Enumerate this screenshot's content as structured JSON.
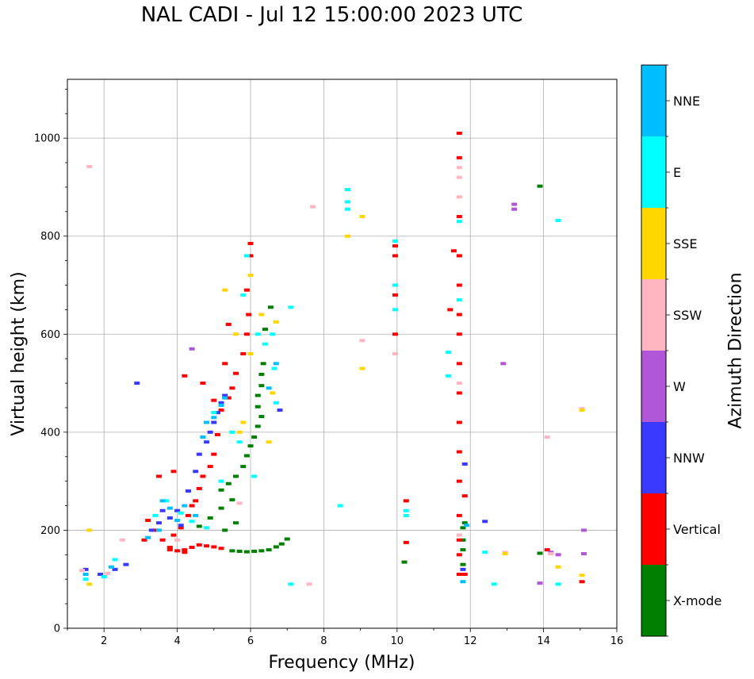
{
  "chart_data": {
    "type": "scatter",
    "title": "NAL CADI - Jul 12 15:00:00 2023 UTC",
    "xlabel": "Frequency (MHz)",
    "ylabel": "Virtual height (km)",
    "xlim": [
      1,
      16
    ],
    "ylim": [
      0,
      1120
    ],
    "xticks": [
      2,
      4,
      6,
      8,
      10,
      12,
      14,
      16
    ],
    "yticks": [
      0,
      200,
      400,
      600,
      800,
      1000
    ],
    "grid": true,
    "colorbar": {
      "title": "Azimuth Direction",
      "categories": [
        "X-mode",
        "Vertical",
        "NNW",
        "W",
        "SSW",
        "SSE",
        "E",
        "NNE"
      ],
      "colors": {
        "X-mode": "#008000",
        "Vertical": "#ff0000",
        "NNW": "#3a3aff",
        "W": "#b156d6",
        "SSW": "#ffb6c1",
        "SSE": "#ffd700",
        "E": "#00ffff",
        "NNE": "#00bfff"
      }
    },
    "series": [
      {
        "name": "X-mode",
        "points": [
          [
            5.5,
            158
          ],
          [
            5.7,
            157
          ],
          [
            5.9,
            156
          ],
          [
            6.1,
            157
          ],
          [
            6.3,
            158
          ],
          [
            6.5,
            160
          ],
          [
            6.7,
            166
          ],
          [
            6.85,
            172
          ],
          [
            7.0,
            182
          ],
          [
            4.6,
            208
          ],
          [
            4.9,
            225
          ],
          [
            5.2,
            245
          ],
          [
            5.5,
            262
          ],
          [
            5.2,
            282
          ],
          [
            5.4,
            295
          ],
          [
            5.6,
            310
          ],
          [
            5.8,
            330
          ],
          [
            5.9,
            352
          ],
          [
            6.0,
            372
          ],
          [
            6.1,
            390
          ],
          [
            6.2,
            412
          ],
          [
            6.3,
            432
          ],
          [
            6.2,
            452
          ],
          [
            6.2,
            475
          ],
          [
            6.3,
            495
          ],
          [
            6.3,
            518
          ],
          [
            6.35,
            540
          ],
          [
            6.4,
            610
          ],
          [
            6.55,
            655
          ],
          [
            10.2,
            135
          ],
          [
            11.8,
            130
          ],
          [
            11.8,
            160
          ],
          [
            11.8,
            180
          ],
          [
            11.8,
            205
          ],
          [
            11.85,
            215
          ],
          [
            13.9,
            902
          ],
          [
            13.9,
            153
          ],
          [
            5.3,
            200
          ],
          [
            5.6,
            215
          ]
        ]
      },
      {
        "name": "Vertical",
        "points": [
          [
            3.2,
            220
          ],
          [
            3.4,
            200
          ],
          [
            3.6,
            180
          ],
          [
            3.8,
            165
          ],
          [
            4.0,
            158
          ],
          [
            4.2,
            160
          ],
          [
            4.4,
            165
          ],
          [
            4.6,
            170
          ],
          [
            4.8,
            168
          ],
          [
            5.0,
            166
          ],
          [
            5.2,
            163
          ],
          [
            3.9,
            190
          ],
          [
            4.1,
            205
          ],
          [
            4.3,
            230
          ],
          [
            4.4,
            250
          ],
          [
            4.5,
            260
          ],
          [
            4.6,
            285
          ],
          [
            4.7,
            310
          ],
          [
            4.9,
            330
          ],
          [
            5.0,
            355
          ],
          [
            5.1,
            395
          ],
          [
            5.2,
            445
          ],
          [
            5.4,
            470
          ],
          [
            5.5,
            490
          ],
          [
            5.6,
            520
          ],
          [
            5.8,
            560
          ],
          [
            5.9,
            600
          ],
          [
            5.95,
            640
          ],
          [
            5.9,
            690
          ],
          [
            6.0,
            760
          ],
          [
            6.0,
            785
          ],
          [
            5.0,
            465
          ],
          [
            4.7,
            500
          ],
          [
            5.3,
            540
          ],
          [
            5.4,
            620
          ],
          [
            4.2,
            515
          ],
          [
            9.95,
            780
          ],
          [
            9.95,
            760
          ],
          [
            9.95,
            680
          ],
          [
            9.95,
            600
          ],
          [
            11.7,
            1010
          ],
          [
            11.7,
            960
          ],
          [
            11.7,
            840
          ],
          [
            11.7,
            760
          ],
          [
            11.7,
            700
          ],
          [
            11.7,
            640
          ],
          [
            11.7,
            600
          ],
          [
            11.7,
            540
          ],
          [
            11.7,
            480
          ],
          [
            11.7,
            420
          ],
          [
            11.7,
            360
          ],
          [
            11.7,
            300
          ],
          [
            11.85,
            270
          ],
          [
            11.7,
            230
          ],
          [
            11.7,
            180
          ],
          [
            11.7,
            150
          ],
          [
            11.7,
            110
          ],
          [
            11.85,
            110
          ],
          [
            3.8,
            160
          ],
          [
            4.2,
            155
          ],
          [
            3.1,
            180
          ],
          [
            3.5,
            310
          ],
          [
            10.25,
            260
          ],
          [
            10.25,
            175
          ],
          [
            14.1,
            160
          ],
          [
            15.05,
            95
          ],
          [
            11.45,
            650
          ],
          [
            11.55,
            770
          ],
          [
            3.9,
            320
          ]
        ]
      },
      {
        "name": "NNW",
        "points": [
          [
            1.5,
            120
          ],
          [
            1.9,
            110
          ],
          [
            2.3,
            120
          ],
          [
            2.6,
            130
          ],
          [
            2.9,
            500
          ],
          [
            3.3,
            200
          ],
          [
            3.5,
            215
          ],
          [
            3.8,
            225
          ],
          [
            4.0,
            240
          ],
          [
            4.3,
            280
          ],
          [
            4.5,
            320
          ],
          [
            4.6,
            355
          ],
          [
            4.8,
            380
          ],
          [
            4.9,
            400
          ],
          [
            5.0,
            420
          ],
          [
            5.1,
            440
          ],
          [
            5.2,
            460
          ],
          [
            5.3,
            475
          ],
          [
            6.8,
            445
          ],
          [
            12.4,
            218
          ],
          [
            11.85,
            335
          ],
          [
            11.8,
            120
          ],
          [
            4.1,
            210
          ],
          [
            3.6,
            240
          ]
        ]
      },
      {
        "name": "W",
        "points": [
          [
            4.4,
            570
          ],
          [
            12.9,
            540
          ],
          [
            13.2,
            865
          ],
          [
            13.2,
            855
          ],
          [
            14.4,
            150
          ],
          [
            15.1,
            152
          ],
          [
            15.1,
            200
          ],
          [
            13.9,
            92
          ],
          [
            14.2,
            155
          ]
        ]
      },
      {
        "name": "SSW",
        "points": [
          [
            1.6,
            942
          ],
          [
            1.4,
            118
          ],
          [
            2.1,
            112
          ],
          [
            2.5,
            180
          ],
          [
            4.0,
            180
          ],
          [
            5.7,
            255
          ],
          [
            7.6,
            90
          ],
          [
            7.7,
            860
          ],
          [
            9.05,
            587
          ],
          [
            9.95,
            560
          ],
          [
            11.7,
            920
          ],
          [
            11.7,
            940
          ],
          [
            11.7,
            880
          ],
          [
            11.7,
            500
          ],
          [
            11.7,
            190
          ],
          [
            12.95,
            155
          ],
          [
            14.1,
            390
          ],
          [
            15.05,
            448
          ],
          [
            14.2,
            152
          ]
        ]
      },
      {
        "name": "SSE",
        "points": [
          [
            1.6,
            200
          ],
          [
            1.6,
            90
          ],
          [
            5.3,
            690
          ],
          [
            5.6,
            600
          ],
          [
            5.7,
            400
          ],
          [
            5.8,
            420
          ],
          [
            6.0,
            560
          ],
          [
            6.0,
            720
          ],
          [
            6.3,
            640
          ],
          [
            6.5,
            380
          ],
          [
            6.6,
            480
          ],
          [
            6.7,
            625
          ],
          [
            8.65,
            800
          ],
          [
            9.05,
            530
          ],
          [
            9.05,
            840
          ],
          [
            12.95,
            152
          ],
          [
            14.4,
            125
          ],
          [
            15.05,
            108
          ],
          [
            15.05,
            445
          ]
        ]
      },
      {
        "name": "E",
        "points": [
          [
            1.5,
            100
          ],
          [
            2.0,
            105
          ],
          [
            2.3,
            140
          ],
          [
            3.4,
            230
          ],
          [
            3.7,
            260
          ],
          [
            4.1,
            235
          ],
          [
            4.4,
            218
          ],
          [
            4.8,
            205
          ],
          [
            5.0,
            440
          ],
          [
            5.2,
            300
          ],
          [
            5.5,
            400
          ],
          [
            5.7,
            380
          ],
          [
            5.8,
            680
          ],
          [
            5.9,
            760
          ],
          [
            6.1,
            310
          ],
          [
            6.2,
            600
          ],
          [
            6.4,
            580
          ],
          [
            6.6,
            600
          ],
          [
            6.65,
            530
          ],
          [
            6.7,
            460
          ],
          [
            7.1,
            655
          ],
          [
            7.1,
            90
          ],
          [
            8.45,
            250
          ],
          [
            8.65,
            895
          ],
          [
            8.65,
            870
          ],
          [
            8.65,
            855
          ],
          [
            9.95,
            790
          ],
          [
            9.95,
            700
          ],
          [
            9.95,
            650
          ],
          [
            10.25,
            240
          ],
          [
            10.25,
            230
          ],
          [
            11.4,
            563
          ],
          [
            11.4,
            515
          ],
          [
            11.7,
            830
          ],
          [
            11.7,
            670
          ],
          [
            12.4,
            155
          ],
          [
            12.65,
            90
          ],
          [
            14.4,
            90
          ],
          [
            14.4,
            832
          ]
        ]
      },
      {
        "name": "NNE",
        "points": [
          [
            1.5,
            110
          ],
          [
            2.2,
            125
          ],
          [
            3.2,
            185
          ],
          [
            3.5,
            200
          ],
          [
            3.6,
            260
          ],
          [
            3.8,
            245
          ],
          [
            4.0,
            220
          ],
          [
            4.2,
            250
          ],
          [
            4.5,
            230
          ],
          [
            4.7,
            390
          ],
          [
            4.8,
            420
          ],
          [
            5.0,
            430
          ],
          [
            5.2,
            455
          ],
          [
            5.3,
            470
          ],
          [
            6.5,
            490
          ],
          [
            6.7,
            540
          ],
          [
            11.9,
            210
          ],
          [
            11.8,
            95
          ]
        ]
      }
    ]
  }
}
